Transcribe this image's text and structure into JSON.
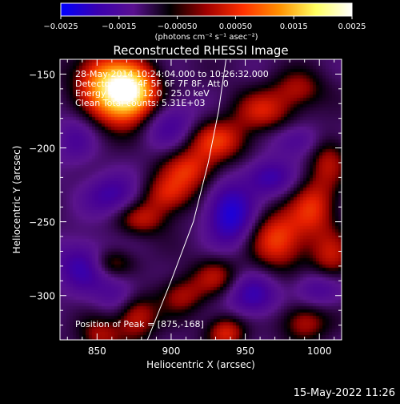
{
  "chart_data": {
    "type": "heatmap",
    "title": "Reconstructed RHESSI Image",
    "xlabel": "Heliocentric X (arcsec)",
    "ylabel": "Heliocentric Y (arcsec)",
    "xlim": [
      825,
      1015
    ],
    "ylim": [
      -330,
      -140
    ],
    "x_ticks": [
      850,
      900,
      950,
      1000
    ],
    "y_ticks": [
      -150,
      -200,
      -250,
      -300
    ],
    "x_tick_labels": [
      "850",
      "900",
      "950",
      "1000"
    ],
    "y_tick_labels": [
      "−150",
      "−200",
      "−250",
      "−300"
    ],
    "colorbar": {
      "range": [
        -0.0025,
        0.0025
      ],
      "ticks": [
        -0.0025,
        -0.0015,
        -0.0005,
        0.0005,
        0.0015,
        0.0025
      ],
      "tick_labels": [
        "−0.0025",
        "−0.0015",
        "−0.00050",
        "0.00050",
        "0.0015",
        "0.0025"
      ],
      "unit_label": "(photons cm⁻² s⁻¹ asec⁻²)",
      "colors": [
        "#0000ff",
        "#3a00b0",
        "#5a1090",
        "#000000",
        "#a00000",
        "#ff3000",
        "#ff9000",
        "#ffff60",
        "#ffffff"
      ]
    },
    "annotations": [
      "28-May-2014 10:24:04.000 to 10:26:32.000",
      "Detectors: 3F 4F 5F 6F 7F 8F, Att 0",
      "Energy Range: 12.0 - 25.0 keV",
      "Clean     Total counts: 5.31E+03"
    ],
    "peak_label": "Position of Peak = [875,-168]",
    "peak_position": [
      875,
      -168
    ],
    "limb_curve": [
      [
        884,
        -330
      ],
      [
        900,
        -290
      ],
      [
        915,
        -250
      ],
      [
        925,
        -210
      ],
      [
        932,
        -175
      ],
      [
        937,
        -140
      ]
    ],
    "sources": [
      {
        "x": 866,
        "y": -165,
        "amp": 2.3,
        "sx": 15,
        "sy": 14
      },
      {
        "x": 853,
        "y": -150,
        "amp": 1.0,
        "sx": 14,
        "sy": 12
      },
      {
        "x": 877,
        "y": -160,
        "amp": 0.9,
        "sx": 10,
        "sy": 12
      },
      {
        "x": 930,
        "y": -195,
        "amp": 1.2,
        "sx": 15,
        "sy": 10
      },
      {
        "x": 912,
        "y": -215,
        "amp": 1.1,
        "sx": 13,
        "sy": 10
      },
      {
        "x": 897,
        "y": -232,
        "amp": 1.0,
        "sx": 12,
        "sy": 9
      },
      {
        "x": 880,
        "y": -248,
        "amp": 0.9,
        "sx": 12,
        "sy": 8
      },
      {
        "x": 962,
        "y": -175,
        "amp": 1.0,
        "sx": 14,
        "sy": 10
      },
      {
        "x": 986,
        "y": -160,
        "amp": 0.8,
        "sx": 12,
        "sy": 9
      },
      {
        "x": 972,
        "y": -262,
        "amp": 1.3,
        "sx": 13,
        "sy": 14
      },
      {
        "x": 996,
        "y": -240,
        "amp": 1.1,
        "sx": 11,
        "sy": 14
      },
      {
        "x": 1008,
        "y": -275,
        "amp": 0.9,
        "sx": 10,
        "sy": 13
      },
      {
        "x": 930,
        "y": -287,
        "amp": 0.8,
        "sx": 11,
        "sy": 9
      },
      {
        "x": 907,
        "y": -300,
        "amp": 0.8,
        "sx": 11,
        "sy": 9
      },
      {
        "x": 876,
        "y": -312,
        "amp": 1.2,
        "sx": 10,
        "sy": 12
      },
      {
        "x": 852,
        "y": -327,
        "amp": 0.8,
        "sx": 10,
        "sy": 9
      },
      {
        "x": 937,
        "y": -325,
        "amp": 1.1,
        "sx": 9,
        "sy": 8
      },
      {
        "x": 990,
        "y": -318,
        "amp": 0.9,
        "sx": 11,
        "sy": 9
      },
      {
        "x": 1006,
        "y": -208,
        "amp": 0.8,
        "sx": 9,
        "sy": 12
      },
      {
        "x": 860,
        "y": -232,
        "amp": -0.9,
        "sx": 14,
        "sy": 10
      },
      {
        "x": 900,
        "y": -185,
        "amp": -0.8,
        "sx": 14,
        "sy": 12
      },
      {
        "x": 940,
        "y": -245,
        "amp": -1.5,
        "sx": 11,
        "sy": 14
      },
      {
        "x": 966,
        "y": -220,
        "amp": -1.0,
        "sx": 12,
        "sy": 9
      },
      {
        "x": 955,
        "y": -300,
        "amp": -1.0,
        "sx": 12,
        "sy": 10
      },
      {
        "x": 1000,
        "y": -295,
        "amp": -0.8,
        "sx": 12,
        "sy": 9
      },
      {
        "x": 985,
        "y": -195,
        "amp": -0.7,
        "sx": 12,
        "sy": 8
      },
      {
        "x": 840,
        "y": -280,
        "amp": -1.0,
        "sx": 13,
        "sy": 12
      },
      {
        "x": 868,
        "y": -300,
        "amp": -0.8,
        "sx": 12,
        "sy": 10
      },
      {
        "x": 835,
        "y": -195,
        "amp": -0.6,
        "sx": 10,
        "sy": 12
      },
      {
        "x": 860,
        "y": -278,
        "amp": 0.8,
        "sx": 10,
        "sy": 7
      }
    ]
  },
  "footer": {
    "timestamp": "15-May-2022 11:26"
  }
}
